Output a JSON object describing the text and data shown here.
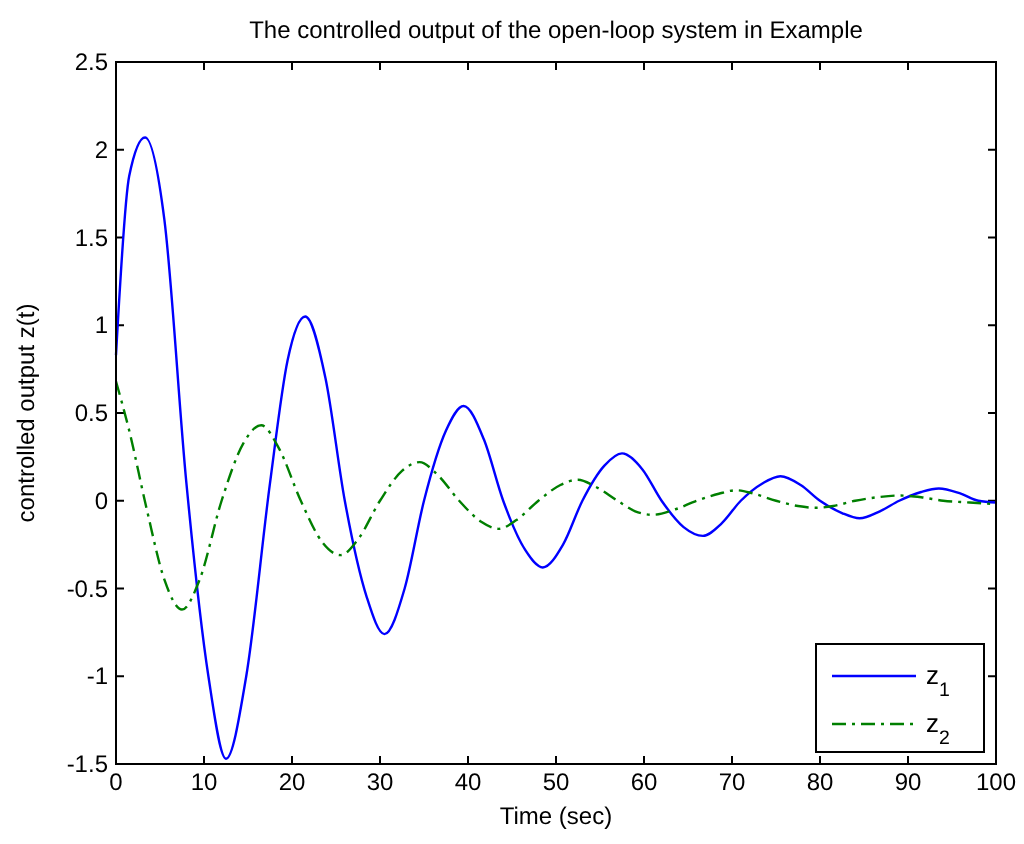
{
  "chart_data": {
    "type": "line",
    "title": "The controlled output of the open-loop system in Example",
    "xlabel": "Time (sec)",
    "ylabel": "controlled output z(t)",
    "xlim": [
      0,
      100
    ],
    "xticks": [
      0,
      10,
      20,
      30,
      40,
      50,
      60,
      70,
      80,
      90,
      100
    ],
    "ylim": [
      -1.5,
      2.5
    ],
    "yticks": [
      -1.5,
      -1,
      -0.5,
      0,
      0.5,
      1,
      1.5,
      2,
      2.5
    ],
    "grid": false,
    "legend": "bottom right",
    "series": [
      {
        "name": "z$_{1}$",
        "color": "#0000ff",
        "line_style": "solid",
        "x": [
          0,
          1.5,
          3.3,
          5.5,
          8,
          10.5,
          12.5,
          14.8,
          17.5,
          19.5,
          21.5,
          23.8,
          26,
          28.5,
          30.5,
          32.8,
          35,
          37.5,
          39.5,
          41.8,
          44,
          46.5,
          48.5,
          50.8,
          53,
          55.5,
          57.5,
          59.8,
          62,
          64.5,
          66.7,
          68.8,
          71,
          73.5,
          75.5,
          77.8,
          80,
          82.5,
          84.5,
          86.8,
          89,
          91.5,
          93.5,
          96,
          98,
          100
        ],
        "values": [
          0.83,
          1.85,
          2.07,
          1.6,
          0.1,
          -1.0,
          -1.47,
          -1.0,
          0.1,
          0.8,
          1.05,
          0.7,
          0.0,
          -0.55,
          -0.76,
          -0.5,
          0.0,
          0.4,
          0.54,
          0.35,
          0.0,
          -0.28,
          -0.38,
          -0.25,
          0.0,
          0.2,
          0.27,
          0.18,
          0.0,
          -0.15,
          -0.2,
          -0.13,
          0.0,
          0.1,
          0.14,
          0.09,
          0.0,
          -0.07,
          -0.1,
          -0.06,
          0.0,
          0.05,
          0.07,
          0.04,
          0.0,
          -0.01
        ]
      },
      {
        "name": "z$_{2}$",
        "color": "#007f00",
        "line_style": "dashed",
        "x": [
          0,
          1.5,
          3.5,
          5.5,
          7.5,
          9.5,
          12,
          14.5,
          16.5,
          18.5,
          21,
          23.5,
          25.5,
          27.5,
          30,
          32.5,
          34.5,
          36.5,
          39,
          41.5,
          43.5,
          45.5,
          48,
          50.5,
          52.5,
          54.5,
          57,
          59,
          61,
          63.5,
          66,
          68.5,
          70.5,
          72.5,
          75,
          77.5,
          79.5,
          81.5,
          84,
          86.5,
          89,
          91.5,
          94,
          97,
          100
        ],
        "values": [
          0.68,
          0.4,
          -0.05,
          -0.45,
          -0.62,
          -0.45,
          0.0,
          0.33,
          0.43,
          0.3,
          0.0,
          -0.24,
          -0.31,
          -0.22,
          0.0,
          0.17,
          0.22,
          0.15,
          0.0,
          -0.12,
          -0.16,
          -0.11,
          0.0,
          0.09,
          0.12,
          0.08,
          0.0,
          -0.06,
          -0.08,
          -0.05,
          0.0,
          0.04,
          0.06,
          0.04,
          0.0,
          -0.03,
          -0.04,
          -0.03,
          0.0,
          0.02,
          0.03,
          0.02,
          0.0,
          -0.01,
          -0.02
        ]
      }
    ]
  }
}
